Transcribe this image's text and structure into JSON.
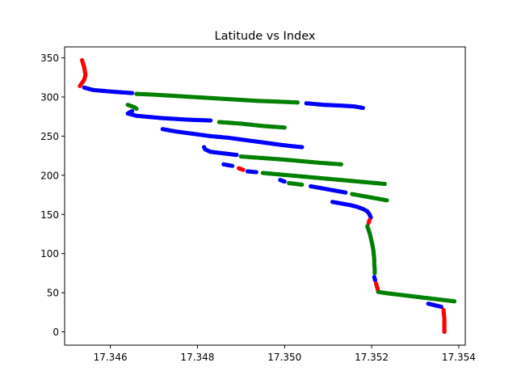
{
  "chart_data": {
    "type": "scatter",
    "title": "Latitude vs Index",
    "xlabel": "",
    "ylabel": "",
    "xlim": [
      17.34495,
      17.35415
    ],
    "ylim": [
      -17,
      364
    ],
    "x_ticks": [
      17.346,
      17.348,
      17.35,
      17.352,
      17.354
    ],
    "x_tick_labels": [
      "17.346",
      "17.348",
      "17.350",
      "17.352",
      "17.354"
    ],
    "y_ticks": [
      0,
      50,
      100,
      150,
      200,
      250,
      300,
      350
    ],
    "y_tick_labels": [
      "0",
      "50",
      "100",
      "150",
      "200",
      "250",
      "300",
      "350"
    ],
    "grid": false,
    "legend": "none",
    "colors": {
      "red": "#ff0000",
      "blue": "#0000ff",
      "green": "#008000"
    },
    "segments": [
      {
        "color": "red",
        "points": [
          [
            17.34535,
            347
          ],
          [
            17.3454,
            338
          ],
          [
            17.34543,
            328
          ],
          [
            17.3454,
            322
          ],
          [
            17.34535,
            318
          ],
          [
            17.3453,
            314
          ]
        ]
      },
      {
        "color": "blue",
        "points": [
          [
            17.3454,
            312
          ],
          [
            17.3456,
            309
          ],
          [
            17.346,
            307
          ],
          [
            17.3465,
            305
          ]
        ]
      },
      {
        "color": "green",
        "points": [
          [
            17.3466,
            304
          ],
          [
            17.347,
            303
          ],
          [
            17.3476,
            301
          ],
          [
            17.3482,
            299
          ],
          [
            17.3488,
            297
          ],
          [
            17.3494,
            295
          ],
          [
            17.3499,
            294
          ],
          [
            17.3503,
            293
          ]
        ]
      },
      {
        "color": "blue",
        "points": [
          [
            17.3505,
            292
          ],
          [
            17.3509,
            290
          ],
          [
            17.3513,
            289
          ],
          [
            17.3516,
            288
          ],
          [
            17.3518,
            286
          ]
        ]
      },
      {
        "color": "green",
        "points": [
          [
            17.3464,
            290
          ],
          [
            17.34655,
            287
          ],
          [
            17.3466,
            285
          ]
        ]
      },
      {
        "color": "blue",
        "points": [
          [
            17.3465,
            282
          ],
          [
            17.3464,
            279
          ],
          [
            17.3466,
            276
          ],
          [
            17.3472,
            273
          ],
          [
            17.3478,
            271
          ],
          [
            17.3483,
            270
          ]
        ]
      },
      {
        "color": "green",
        "points": [
          [
            17.3485,
            268
          ],
          [
            17.349,
            266
          ],
          [
            17.3495,
            263
          ],
          [
            17.35,
            261
          ]
        ]
      },
      {
        "color": "blue",
        "points": [
          [
            17.3472,
            259
          ],
          [
            17.3475,
            256
          ],
          [
            17.3479,
            253
          ],
          [
            17.3483,
            250
          ],
          [
            17.3487,
            248
          ],
          [
            17.3491,
            245
          ],
          [
            17.3495,
            242
          ],
          [
            17.3499,
            239
          ],
          [
            17.3502,
            237
          ],
          [
            17.3504,
            236
          ]
        ]
      },
      {
        "color": "blue",
        "points": [
          [
            17.34815,
            236
          ],
          [
            17.34818,
            233
          ],
          [
            17.3483,
            230
          ],
          [
            17.3486,
            228
          ],
          [
            17.3489,
            226
          ]
        ]
      },
      {
        "color": "green",
        "points": [
          [
            17.349,
            224
          ],
          [
            17.3495,
            222
          ],
          [
            17.35,
            220
          ],
          [
            17.3504,
            218
          ],
          [
            17.3508,
            216
          ],
          [
            17.3513,
            214
          ]
        ]
      },
      {
        "color": "blue",
        "points": [
          [
            17.3486,
            214
          ],
          [
            17.3488,
            212
          ]
        ]
      },
      {
        "color": "red",
        "points": [
          [
            17.34895,
            209
          ],
          [
            17.34905,
            207
          ]
        ]
      },
      {
        "color": "blue",
        "points": [
          [
            17.34915,
            205
          ],
          [
            17.34935,
            204
          ]
        ]
      },
      {
        "color": "green",
        "points": [
          [
            17.3495,
            203
          ],
          [
            17.3499,
            201
          ],
          [
            17.3503,
            199
          ],
          [
            17.3507,
            197
          ],
          [
            17.3511,
            195
          ],
          [
            17.3515,
            193
          ],
          [
            17.3519,
            191
          ],
          [
            17.3523,
            189
          ]
        ]
      },
      {
        "color": "blue",
        "points": [
          [
            17.3499,
            194
          ],
          [
            17.35,
            192
          ]
        ]
      },
      {
        "color": "green",
        "points": [
          [
            17.3501,
            190
          ],
          [
            17.3504,
            188
          ]
        ]
      },
      {
        "color": "blue",
        "points": [
          [
            17.3506,
            186
          ],
          [
            17.3508,
            184
          ],
          [
            17.351,
            182
          ],
          [
            17.3512,
            180
          ],
          [
            17.3514,
            178
          ]
        ]
      },
      {
        "color": "green",
        "points": [
          [
            17.35155,
            176
          ],
          [
            17.35175,
            174
          ],
          [
            17.35195,
            172
          ],
          [
            17.35215,
            170
          ],
          [
            17.35235,
            168
          ]
        ]
      },
      {
        "color": "blue",
        "points": [
          [
            17.3511,
            166
          ],
          [
            17.3513,
            164
          ],
          [
            17.3515,
            162
          ],
          [
            17.35165,
            160
          ],
          [
            17.3518,
            157
          ],
          [
            17.3519,
            154
          ],
          [
            17.35195,
            150
          ],
          [
            17.35198,
            146
          ]
        ]
      },
      {
        "color": "red",
        "points": [
          [
            17.35195,
            143
          ],
          [
            17.35193,
            139
          ]
        ]
      },
      {
        "color": "green",
        "points": [
          [
            17.3519,
            135
          ],
          [
            17.35193,
            130
          ],
          [
            17.35196,
            125
          ],
          [
            17.35198,
            120
          ],
          [
            17.352,
            115
          ],
          [
            17.35202,
            110
          ],
          [
            17.35204,
            104
          ],
          [
            17.35205,
            98
          ],
          [
            17.35206,
            92
          ],
          [
            17.35206,
            86
          ],
          [
            17.35207,
            80
          ],
          [
            17.35207,
            75
          ]
        ]
      },
      {
        "color": "blue",
        "points": [
          [
            17.35206,
            70
          ],
          [
            17.35208,
            66
          ]
        ]
      },
      {
        "color": "red",
        "points": [
          [
            17.3521,
            62
          ],
          [
            17.35212,
            58
          ],
          [
            17.35214,
            54
          ]
        ]
      },
      {
        "color": "green",
        "points": [
          [
            17.35215,
            51
          ],
          [
            17.3524,
            49
          ],
          [
            17.3527,
            47
          ],
          [
            17.353,
            45
          ],
          [
            17.3533,
            43
          ],
          [
            17.3536,
            41
          ],
          [
            17.3539,
            39
          ]
        ]
      },
      {
        "color": "blue",
        "points": [
          [
            17.3533,
            36
          ],
          [
            17.35345,
            34
          ],
          [
            17.3536,
            32
          ]
        ]
      },
      {
        "color": "red",
        "points": [
          [
            17.35365,
            28
          ],
          [
            17.35366,
            22
          ],
          [
            17.35367,
            16
          ],
          [
            17.35367,
            10
          ],
          [
            17.35367,
            5
          ],
          [
            17.35367,
            0
          ]
        ]
      }
    ]
  }
}
